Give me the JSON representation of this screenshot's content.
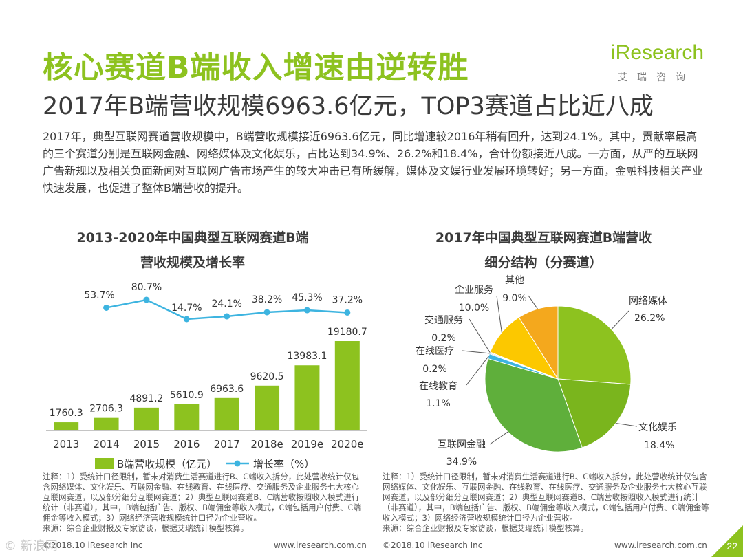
{
  "header": {
    "title": "核心赛道B端收入增速由逆转胜",
    "subtitle": "2017年B端营收规模6963.6亿元，TOP3赛道占比近八成"
  },
  "logo": {
    "wordmark": "iResearch",
    "cn": "艾瑞咨询"
  },
  "paragraph": "2017年，典型互联网赛道营收规模中，B端营收规模接近6963.6亿元，同比增速较2016年稍有回升，达到24.1%。其中，贡献率最高的三个赛道分别是互联网金融、网络媒体及文化娱乐，占比达到34.9%、26.2%和18.4%，合计份额接近八成。一方面，从严的互联网广告新规以及相关负面新闻对互联网广告市场产生的较大冲击已有所缓解，媒体及文娱行业发展环境转好；另一方面，金融科技相关产业快速发展，也促进了整体B端营收的提升。",
  "chart_data": [
    {
      "type": "bar",
      "title_line1": "2013-2020年中国典型互联网赛道B端",
      "title_line2": "营收规模及增长率",
      "categories": [
        "2013",
        "2014",
        "2015",
        "2016",
        "2017",
        "2018e",
        "2019e",
        "2020e"
      ],
      "series": [
        {
          "name": "B端营收规模（亿元）",
          "type": "bar",
          "values": [
            1760.3,
            2706.3,
            4891.2,
            5610.9,
            6963.6,
            9620.5,
            13983.1,
            19180.7
          ],
          "labels": [
            "1760.3",
            "2706.3",
            "4891.2",
            "5610.9",
            "6963.6",
            "9620.5",
            "13983.1",
            "19180.7"
          ]
        },
        {
          "name": "增长率（%）",
          "type": "line",
          "values": [
            null,
            53.7,
            80.7,
            14.7,
            24.1,
            38.2,
            45.3,
            37.2
          ],
          "labels": [
            "",
            "53.7%",
            "80.7%",
            "14.7%",
            "24.1%",
            "38.2%",
            "45.3%",
            "37.2%"
          ]
        }
      ],
      "colors": {
        "bar": "#8dc21f",
        "line": "#3db4e0"
      }
    },
    {
      "type": "pie",
      "title_line1": "2017年中国典型互联网赛道B端营收",
      "title_line2": "细分结构（分赛道）",
      "slices": [
        {
          "name": "网络媒体",
          "value": 26.2,
          "label": "26.2%",
          "color": "#8dc21f"
        },
        {
          "name": "文化娱乐",
          "value": 18.4,
          "label": "18.4%",
          "color": "#7ab51d"
        },
        {
          "name": "互联网金融",
          "value": 34.9,
          "label": "34.9%",
          "color": "#5faf3b"
        },
        {
          "name": "在线教育",
          "value": 1.1,
          "label": "1.1%",
          "color": "#3db4e0"
        },
        {
          "name": "在线医疗",
          "value": 0.2,
          "label": "0.2%",
          "color": "#2e8fc7"
        },
        {
          "name": "交通服务",
          "value": 0.2,
          "label": "0.2%",
          "color": "#f08c00"
        },
        {
          "name": "企业服务",
          "value": 10.0,
          "label": "10.0%",
          "color": "#fcc800"
        },
        {
          "name": "其他",
          "value": 9.0,
          "label": "9.0%",
          "color": "#f4a81d"
        }
      ]
    }
  ],
  "notes": {
    "left": "注释：1）受统计口径限制，暂未对消费生活赛道进行B、C端收入拆分，此处营收统计仅包含网络媒体、文化娱乐、互联网金融、在线教育、在线医疗、交通服务及企业服务七大核心互联网赛道，以及部分细分互联网赛道；2）典型互联网赛道B、C端营收按照收入模式进行统计（非赛道），其中，B端包括广告、版权、B端佣金等收入模式，C端包括用户付费、C端佣金等收入模式；3）网络经济营收规模统计口径为企业营收。",
    "left_source": "来源：综合企业财报及专家访谈，根据艾瑞统计模型核算。",
    "right": "注释：1）受统计口径限制，暂未对消费生活赛道进行B、C端收入拆分，此处营收统计仅包含网络媒体、文化娱乐、互联网金融、在线教育、在线医疗、交通服务及企业服务七大核心互联网赛道，以及部分细分互联网赛道；2）典型互联网赛道B、C端营收按照收入模式进行统计（非赛道），其中，B端包括广告、版权、B端佣金等收入模式，C端包括用户付费、C端佣金等收入模式；3）网络经济营收规模统计口径为企业营收。",
    "right_source": "来源：综合企业财报及专家访谈，根据艾瑞统计模型核算。"
  },
  "footer": {
    "left_copyright": "©2018.10 iResearch Inc",
    "left_url": "www.iresearch.com.cn",
    "right_copyright": "©2018.10 iResearch Inc",
    "right_url": "www.iresearch.com.cn",
    "page": "22"
  },
  "watermark": "© 新浪网"
}
